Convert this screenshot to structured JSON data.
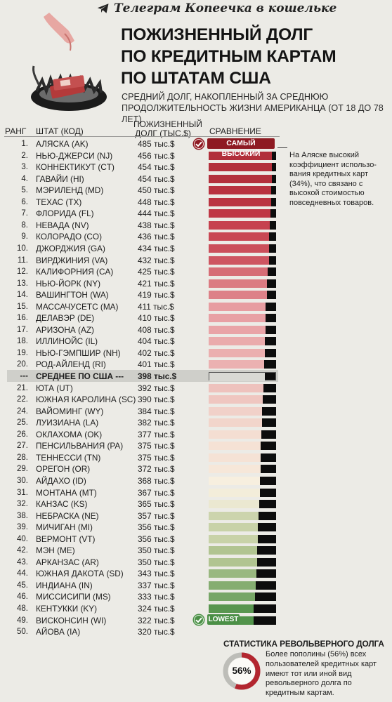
{
  "channel": "Телеграм Копеечка в кошельке",
  "title_lines": [
    "Пожизненный долг",
    "по кредитным картам",
    "по штатам США"
  ],
  "subtitle": "Средний долг, накопленный за среднюю продолжительность жизни американца (от 18 до 78 лет)",
  "headers": {
    "rank": "Ранг",
    "state": "Штат (код)",
    "debt_line1": "Пожизненный",
    "debt_line2": "долг (тыс.$)",
    "comparison": "Сравнение"
  },
  "badges": {
    "highest": "САМЫЙ ВЫСОКИЙ",
    "lowest": "LOWEST"
  },
  "note": "На Аляске высокий коэффициент использо-вания кредитных карт (34%), что связано с высокой стоимостью повседневных товаров.",
  "stat": {
    "title": "Статистика револьверного долга",
    "percent_label": "56%",
    "percent": 56,
    "text": "Более пополины (56%) всех пользователей кредитных карт имеют тот или иной вид револьверного долга по кредитным картам."
  },
  "colors": {
    "high": "#8e1a22",
    "mid_pink": "#e8a0a4",
    "pale": "#f7efdf",
    "low": "#4b8f46",
    "bar_bg": "#0d0d0d"
  },
  "chart_data": {
    "type": "bar",
    "xlim": [
      0,
      485
    ],
    "rows": [
      {
        "rank": "1.",
        "state": "Аляска (AK)",
        "label": "485 тыс.$",
        "value": 485
      },
      {
        "rank": "2.",
        "state": "Нью-Джерси (NJ)",
        "label": "456 тыс.$",
        "value": 456
      },
      {
        "rank": "3.",
        "state": "Коннектикут (CT)",
        "label": "454 тыс.$",
        "value": 454
      },
      {
        "rank": "4.",
        "state": "Гавайи (HI)",
        "label": "454 тыс.$",
        "value": 454
      },
      {
        "rank": "5.",
        "state": "Мэриленд (MD)",
        "label": "450 тыс.$",
        "value": 450
      },
      {
        "rank": "6.",
        "state": "Техас (TX)",
        "label": "448 тыс.$",
        "value": 448
      },
      {
        "rank": "7.",
        "state": "Флорида (FL)",
        "label": "444 тыс.$",
        "value": 444
      },
      {
        "rank": "8.",
        "state": "Невада (NV)",
        "label": "438 тыс.$",
        "value": 438
      },
      {
        "rank": "9.",
        "state": "Колорадо (CO)",
        "label": "436 тыс.$",
        "value": 436
      },
      {
        "rank": "10.",
        "state": "Джорджия (GA)",
        "label": "434 тыс.$",
        "value": 434
      },
      {
        "rank": "11.",
        "state": "Вирджиния (VA)",
        "label": "432 тыс.$",
        "value": 432
      },
      {
        "rank": "12.",
        "state": "Калифорния (CA)",
        "label": "425 тыс.$",
        "value": 425
      },
      {
        "rank": "13.",
        "state": "Нью-Йорк (NY)",
        "label": "421 тыс.$",
        "value": 421
      },
      {
        "rank": "14.",
        "state": "Вашингтон (WA)",
        "label": "419 тыс.$",
        "value": 419
      },
      {
        "rank": "15.",
        "state": "Массачусетс (MA)",
        "label": "411 тыс.$",
        "value": 411
      },
      {
        "rank": "16.",
        "state": "Делавэр (DE)",
        "label": "410 тыс.$",
        "value": 410
      },
      {
        "rank": "17.",
        "state": "Аризона (AZ)",
        "label": "408 тыс.$",
        "value": 408
      },
      {
        "rank": "18.",
        "state": "Иллинойс (IL)",
        "label": "404 тыс.$",
        "value": 404
      },
      {
        "rank": "19.",
        "state": "Нью-Гэмпшир (NH)",
        "label": "402 тыс.$",
        "value": 402
      },
      {
        "rank": "20.",
        "state": "Род-Айленд (RI)",
        "label": "401 тыс.$",
        "value": 401
      },
      {
        "rank": "---",
        "state": "Среднее по США ---",
        "label": "398 тыс.$",
        "value": 398,
        "average": true
      },
      {
        "rank": "21.",
        "state": "Юта (UT)",
        "label": "392 тыс.$",
        "value": 392
      },
      {
        "rank": "22.",
        "state": "Южная Каролина (SC)",
        "label": "390 тыс.$",
        "value": 390
      },
      {
        "rank": "24.",
        "state": "Вайоминг (WY)",
        "label": "384 тыс.$",
        "value": 384
      },
      {
        "rank": "25.",
        "state": "Луизиана (LA)",
        "label": "382 тыс.$",
        "value": 382
      },
      {
        "rank": "26.",
        "state": "Оклахома (OK)",
        "label": "377 тыс.$",
        "value": 377
      },
      {
        "rank": "27.",
        "state": "Пенсильвания (PA)",
        "label": "375 тыс.$",
        "value": 375
      },
      {
        "rank": "28.",
        "state": "Теннесси (TN)",
        "label": "375 тыс.$",
        "value": 375
      },
      {
        "rank": "29.",
        "state": "Орегон (OR)",
        "label": "372 тыс.$",
        "value": 372
      },
      {
        "rank": "30.",
        "state": "Айдахо (ID)",
        "label": "368 тыс.$",
        "value": 368
      },
      {
        "rank": "31.",
        "state": "Монтана (MT)",
        "label": "367 тыс.$",
        "value": 367
      },
      {
        "rank": "32.",
        "state": "Канзас (KS)",
        "label": "365 тыс.$",
        "value": 365
      },
      {
        "rank": "38.",
        "state": "Небраска (NE)",
        "label": "357 тыс.$",
        "value": 357
      },
      {
        "rank": "39.",
        "state": "Мичиган (MI)",
        "label": "356 тыс.$",
        "value": 356
      },
      {
        "rank": "40.",
        "state": "Вермонт (VT)",
        "label": "356 тыс.$",
        "value": 356
      },
      {
        "rank": "42.",
        "state": "Мэн (ME)",
        "label": "350 тыс.$",
        "value": 350
      },
      {
        "rank": "43.",
        "state": "Арканзас (AR)",
        "label": "350 тыс.$",
        "value": 350
      },
      {
        "rank": "44.",
        "state": "Южная Дакота (SD)",
        "label": "343 тыс.$",
        "value": 343
      },
      {
        "rank": "45.",
        "state": "Индиана (IN)",
        "label": "337 тыс.$",
        "value": 337
      },
      {
        "rank": "46.",
        "state": "Миссисипи (MS)",
        "label": "333 тыс.$",
        "value": 333
      },
      {
        "rank": "48.",
        "state": "Кентукки (KY)",
        "label": "324 тыс.$",
        "value": 324
      },
      {
        "rank": "49.",
        "state": "Висконсин (WI)",
        "label": "322 тыс.$",
        "value": 322
      },
      {
        "rank": "50.",
        "state": "Айова (IA)",
        "label": "320 тыс.$",
        "value": 320
      }
    ]
  }
}
